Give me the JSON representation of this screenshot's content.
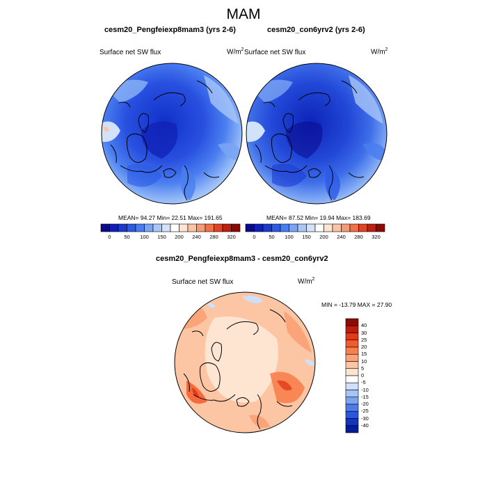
{
  "title": "MAM",
  "units": {
    "base": "W/m",
    "exp": "2"
  },
  "panels": [
    {
      "title": "cesm20_Pengfeiexp8mam3 (yrs 2-6)",
      "variable": "Surface net SW flux",
      "stats": "MEAN=  94.27  Min=  22.51  Max= 191.65",
      "mean": 94.27,
      "min": 22.51,
      "max": 191.65
    },
    {
      "title": "cesm20_con6yrv2 (yrs 2-6)",
      "variable": "Surface net SW flux",
      "stats": "MEAN=  87.52  Min=  19.94  Max= 183.69",
      "mean": 87.52,
      "min": 19.94,
      "max": 183.69
    },
    {
      "title": "cesm20_Pengfeiexp8mam3 - cesm20_con6yrv2",
      "variable": "Surface net SW flux",
      "stats": "MIN = -13.79 MAX =  27.90",
      "min": -13.79,
      "max": 27.9
    }
  ],
  "abs_colorbar": {
    "ticks": [
      "0",
      "50",
      "100",
      "150",
      "200",
      "240",
      "280",
      "320"
    ],
    "colors": [
      "#0a0a8c",
      "#1020b4",
      "#1a3ad2",
      "#2c5ae6",
      "#4a7ef0",
      "#7aa4f4",
      "#a8c6f8",
      "#d2e2fb",
      "#ffffff",
      "#fde5d4",
      "#fbc4a4",
      "#f79a74",
      "#f07048",
      "#e04424",
      "#c02010",
      "#8c0a04"
    ]
  },
  "diff_colorbar": {
    "ticks": [
      "40",
      "30",
      "25",
      "20",
      "15",
      "10",
      "5",
      "0",
      "-5",
      "-10",
      "-15",
      "-20",
      "-25",
      "-30",
      "-40"
    ],
    "colors": [
      "#8c0a04",
      "#c01c0a",
      "#e23a18",
      "#f45a2c",
      "#f8804e",
      "#fba47a",
      "#fcc6a4",
      "#fee5d2",
      "#ffffff",
      "#cfe0fb",
      "#a7c4f7",
      "#7ca4f2",
      "#4c7cea",
      "#2a56de",
      "#1234c4",
      "#061c96"
    ]
  }
}
